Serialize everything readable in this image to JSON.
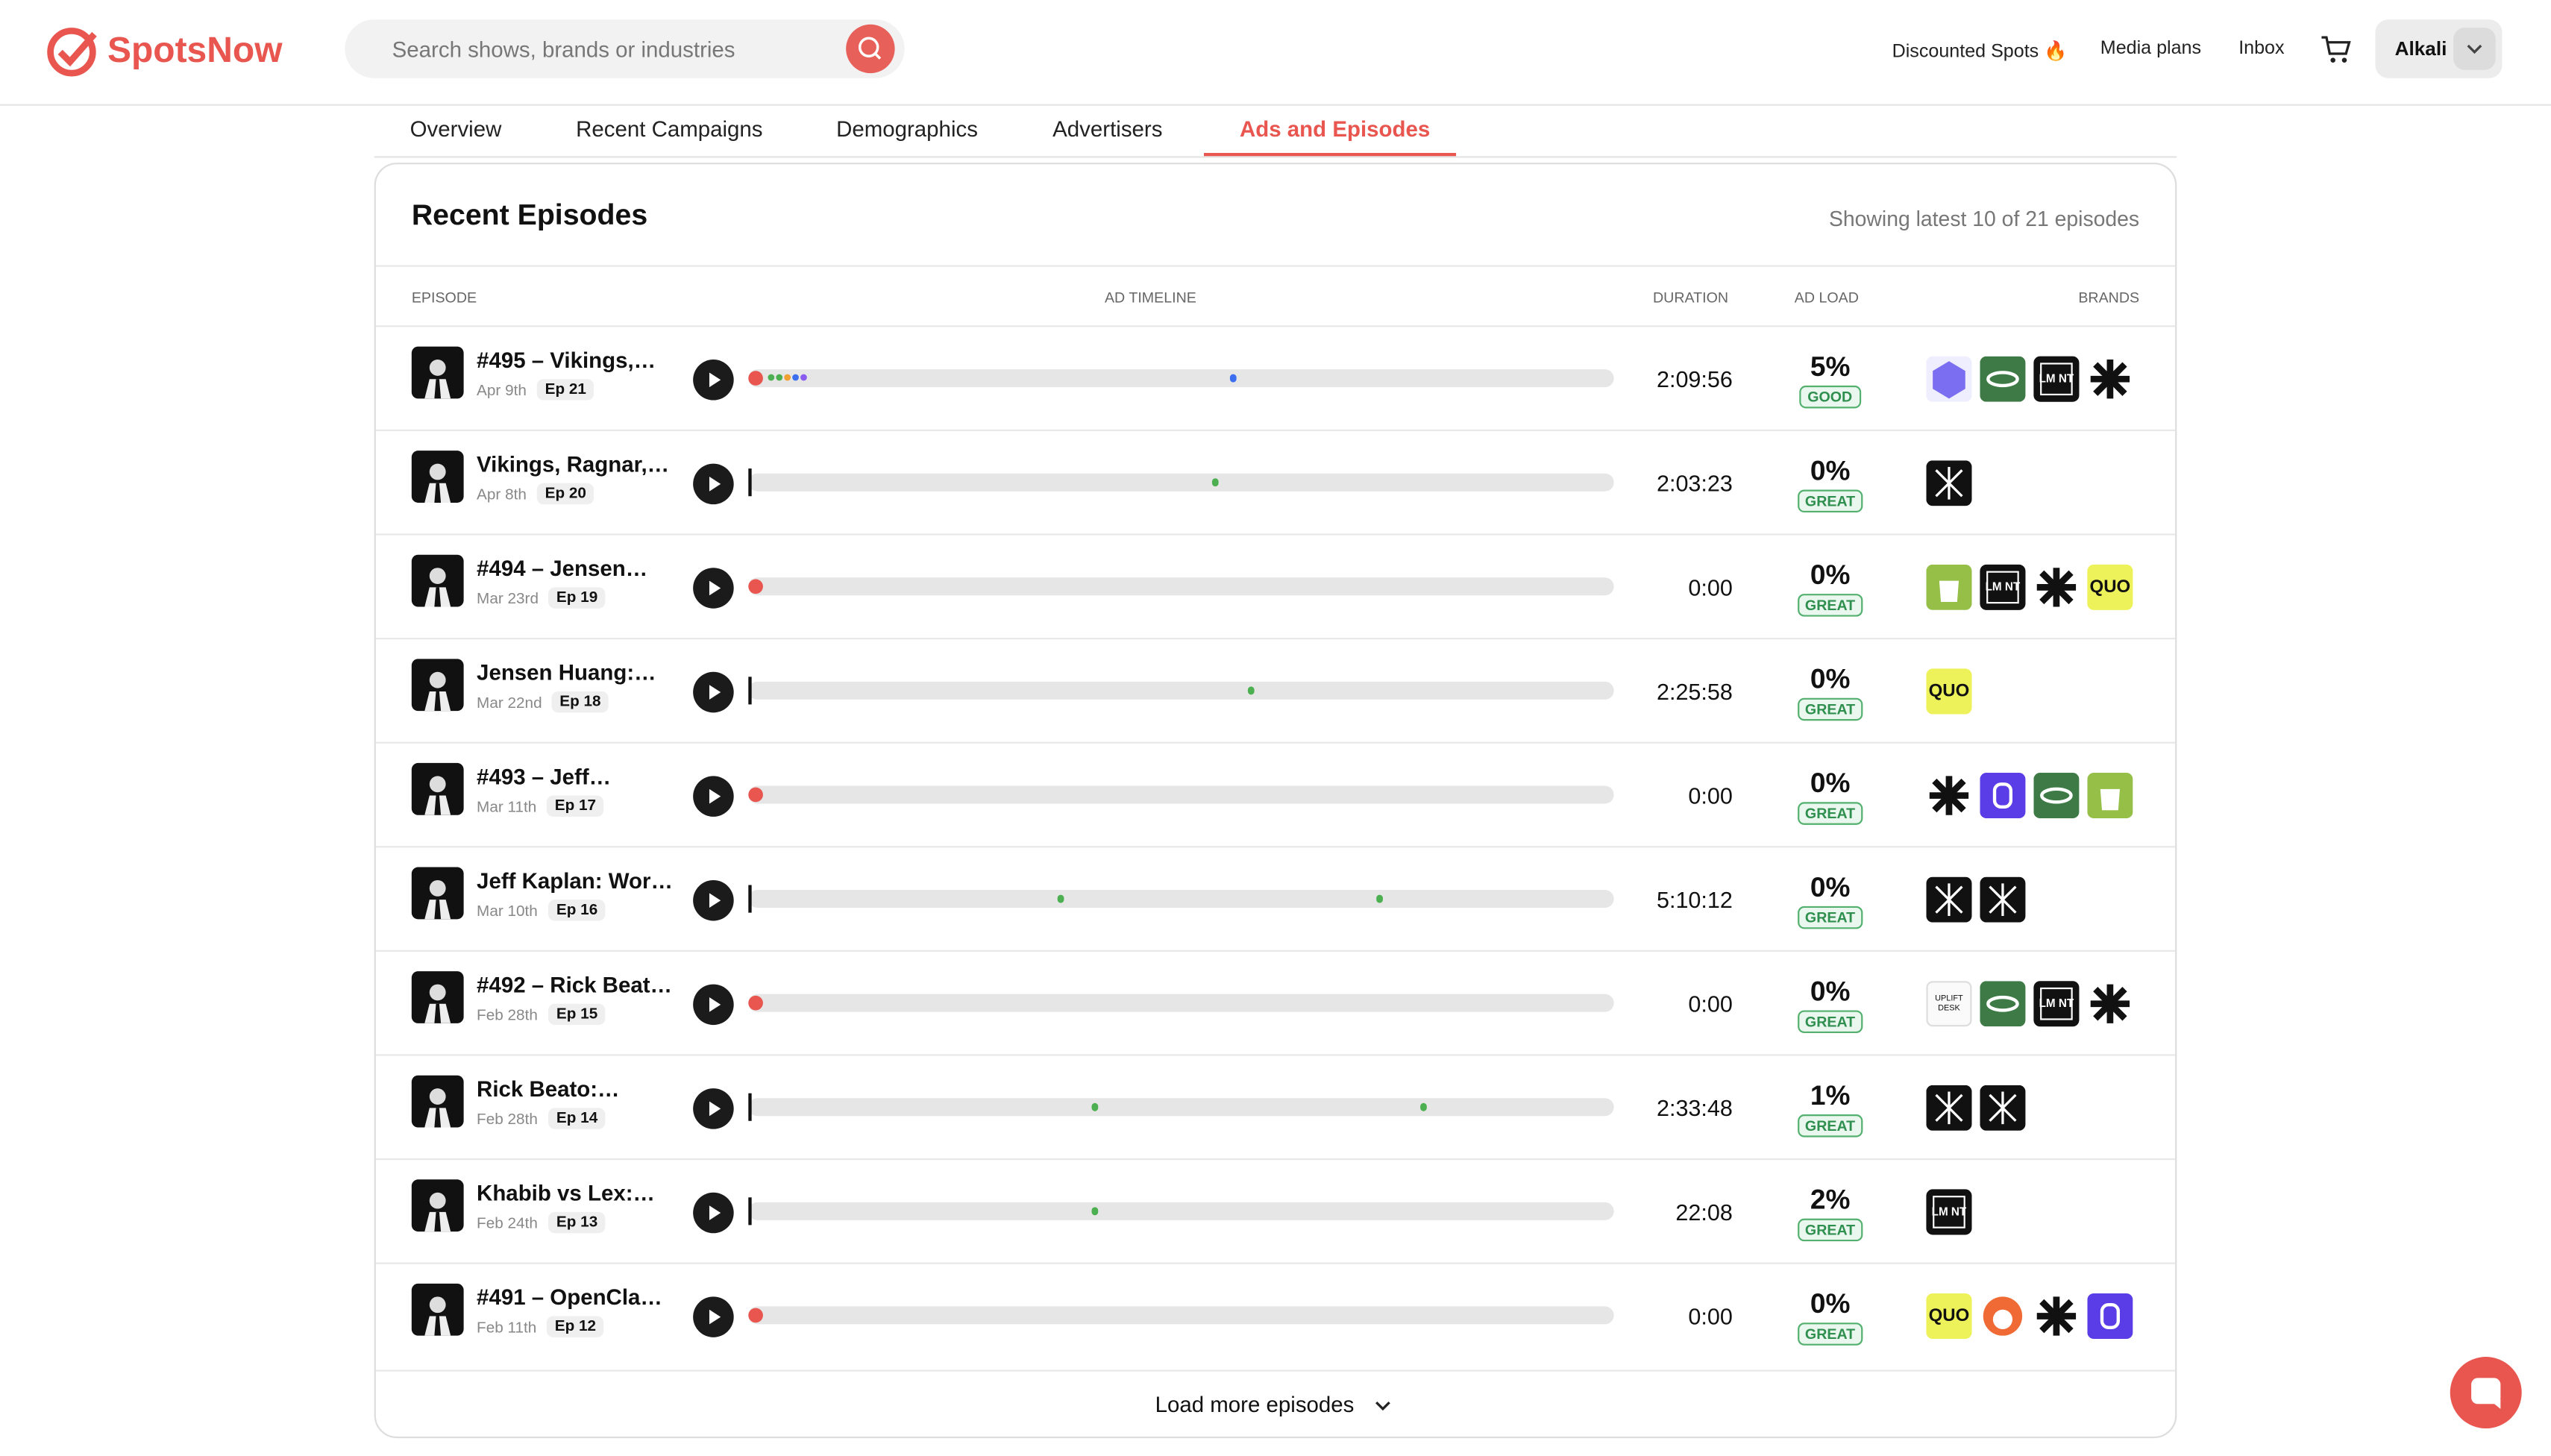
{
  "header": {
    "logo": "SpotsNow",
    "search_placeholder": "Search shows, brands or industries",
    "nav": [
      "Discounted Spots 🔥",
      "Media plans",
      "Inbox"
    ],
    "user": "Alkali"
  },
  "tabs": [
    "Overview",
    "Recent Campaigns",
    "Demographics",
    "Advertisers",
    "Ads and Episodes"
  ],
  "active_tab": 4,
  "section": {
    "title": "Recent Episodes",
    "summary": "Showing latest 10 of 21 episodes"
  },
  "table": {
    "columns": [
      "EPISODE",
      "AD TIMELINE",
      "DURATION",
      "AD LOAD",
      "BRANDS"
    ],
    "rows": [
      {
        "title": "#495 – Vikings,…",
        "date": "Apr 9th",
        "ep": "Ep 21",
        "duration": "2:09:56",
        "ad_load": "5%",
        "rating": "GOOD",
        "ad_positions": [
          0.56
        ]
      },
      {
        "title": "Vikings, Ragnar,…",
        "date": "Apr 8th",
        "ep": "Ep 20",
        "duration": "2:03:23",
        "ad_load": "0%",
        "rating": "GREAT",
        "ad_positions": [
          0.54
        ]
      },
      {
        "title": "#494 – Jensen…",
        "date": "Mar 23rd",
        "ep": "Ep 19",
        "duration": "0:00",
        "ad_load": "0%",
        "rating": "GREAT",
        "ad_positions": []
      },
      {
        "title": "Jensen Huang:…",
        "date": "Mar 22nd",
        "ep": "Ep 18",
        "duration": "2:25:58",
        "ad_load": "0%",
        "rating": "GREAT",
        "ad_positions": [
          0.58
        ]
      },
      {
        "title": "#493 – Jeff…",
        "date": "Mar 11th",
        "ep": "Ep 17",
        "duration": "0:00",
        "ad_load": "0%",
        "rating": "GREAT",
        "ad_positions": []
      },
      {
        "title": "Jeff Kaplan: Wor…",
        "date": "Mar 10th",
        "ep": "Ep 16",
        "duration": "5:10:12",
        "ad_load": "0%",
        "rating": "GREAT",
        "ad_positions": [
          0.36,
          0.73
        ]
      },
      {
        "title": "#492 – Rick Beat…",
        "date": "Feb 28th",
        "ep": "Ep 15",
        "duration": "0:00",
        "ad_load": "0%",
        "rating": "GREAT",
        "ad_positions": []
      },
      {
        "title": "Rick Beato:…",
        "date": "Feb 28th",
        "ep": "Ep 14",
        "duration": "2:33:48",
        "ad_load": "1%",
        "rating": "GREAT",
        "ad_positions": [
          0.4,
          0.78
        ]
      },
      {
        "title": "Khabib vs Lex:…",
        "date": "Feb 24th",
        "ep": "Ep 13",
        "duration": "22:08",
        "ad_load": "2%",
        "rating": "GREAT",
        "ad_positions": [
          0.4
        ]
      },
      {
        "title": "#491 – OpenCla…",
        "date": "Feb 11th",
        "ep": "Ep 12",
        "duration": "0:00",
        "ad_load": "0%",
        "rating": "GREAT",
        "ad_positions": []
      }
    ]
  },
  "brand_texts": {
    "quo": "QUO",
    "lmnt": "LM NT",
    "uplift": "UPLIFT DESK"
  },
  "load_more": "Load more episodes"
}
